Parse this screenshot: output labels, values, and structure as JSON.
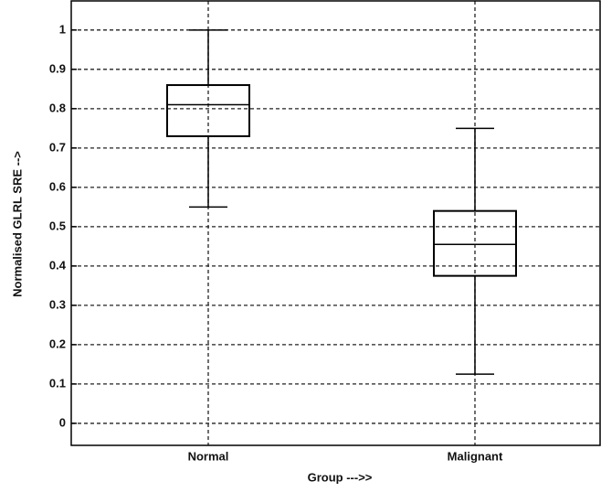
{
  "chart_data": {
    "type": "box",
    "xlabel": "Group --->>",
    "ylabel": "Normalised GLRL SRE -->",
    "categories": [
      "Normal",
      "Malignant"
    ],
    "boxes": [
      {
        "low": 0.55,
        "q1": 0.73,
        "median": 0.81,
        "q3": 0.86,
        "high": 1.0
      },
      {
        "low": 0.125,
        "q1": 0.375,
        "median": 0.455,
        "q3": 0.54,
        "high": 0.75
      }
    ],
    "color": "#000000",
    "ylim": [
      -0.056,
      1.074
    ],
    "yticks": [
      0,
      0.1,
      0.2,
      0.3,
      0.4,
      0.5,
      0.6,
      0.7,
      0.8,
      0.9,
      1
    ],
    "grid": true
  }
}
